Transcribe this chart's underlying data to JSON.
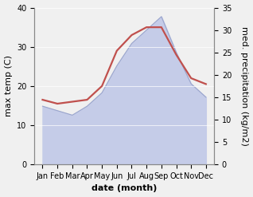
{
  "months": [
    "Jan",
    "Feb",
    "Mar",
    "Apr",
    "May",
    "Jun",
    "Jul",
    "Aug",
    "Sep",
    "Oct",
    "Nov",
    "Dec"
  ],
  "max_temp": [
    16.5,
    15.5,
    16,
    16.5,
    20,
    29,
    33,
    35,
    35,
    28,
    22,
    20.5
  ],
  "precipitation": [
    13,
    12,
    11,
    13,
    16,
    22,
    27,
    30,
    33,
    25,
    18,
    15
  ],
  "temp_color": "#c0504d",
  "precip_fill_color": "#c5cce8",
  "precip_line_color": "#9aa5cc",
  "left_ylim": [
    0,
    40
  ],
  "right_ylim": [
    0,
    35
  ],
  "left_yticks": [
    0,
    10,
    20,
    30,
    40
  ],
  "right_yticks": [
    0,
    5,
    10,
    15,
    20,
    25,
    30,
    35
  ],
  "xlabel": "date (month)",
  "ylabel_left": "max temp (C)",
  "ylabel_right": "med. precipitation (kg/m2)",
  "xlabel_fontsize": 8,
  "ylabel_fontsize": 8,
  "tick_fontsize": 7,
  "line_width": 1.6,
  "bg_color": "#f0f0f0"
}
